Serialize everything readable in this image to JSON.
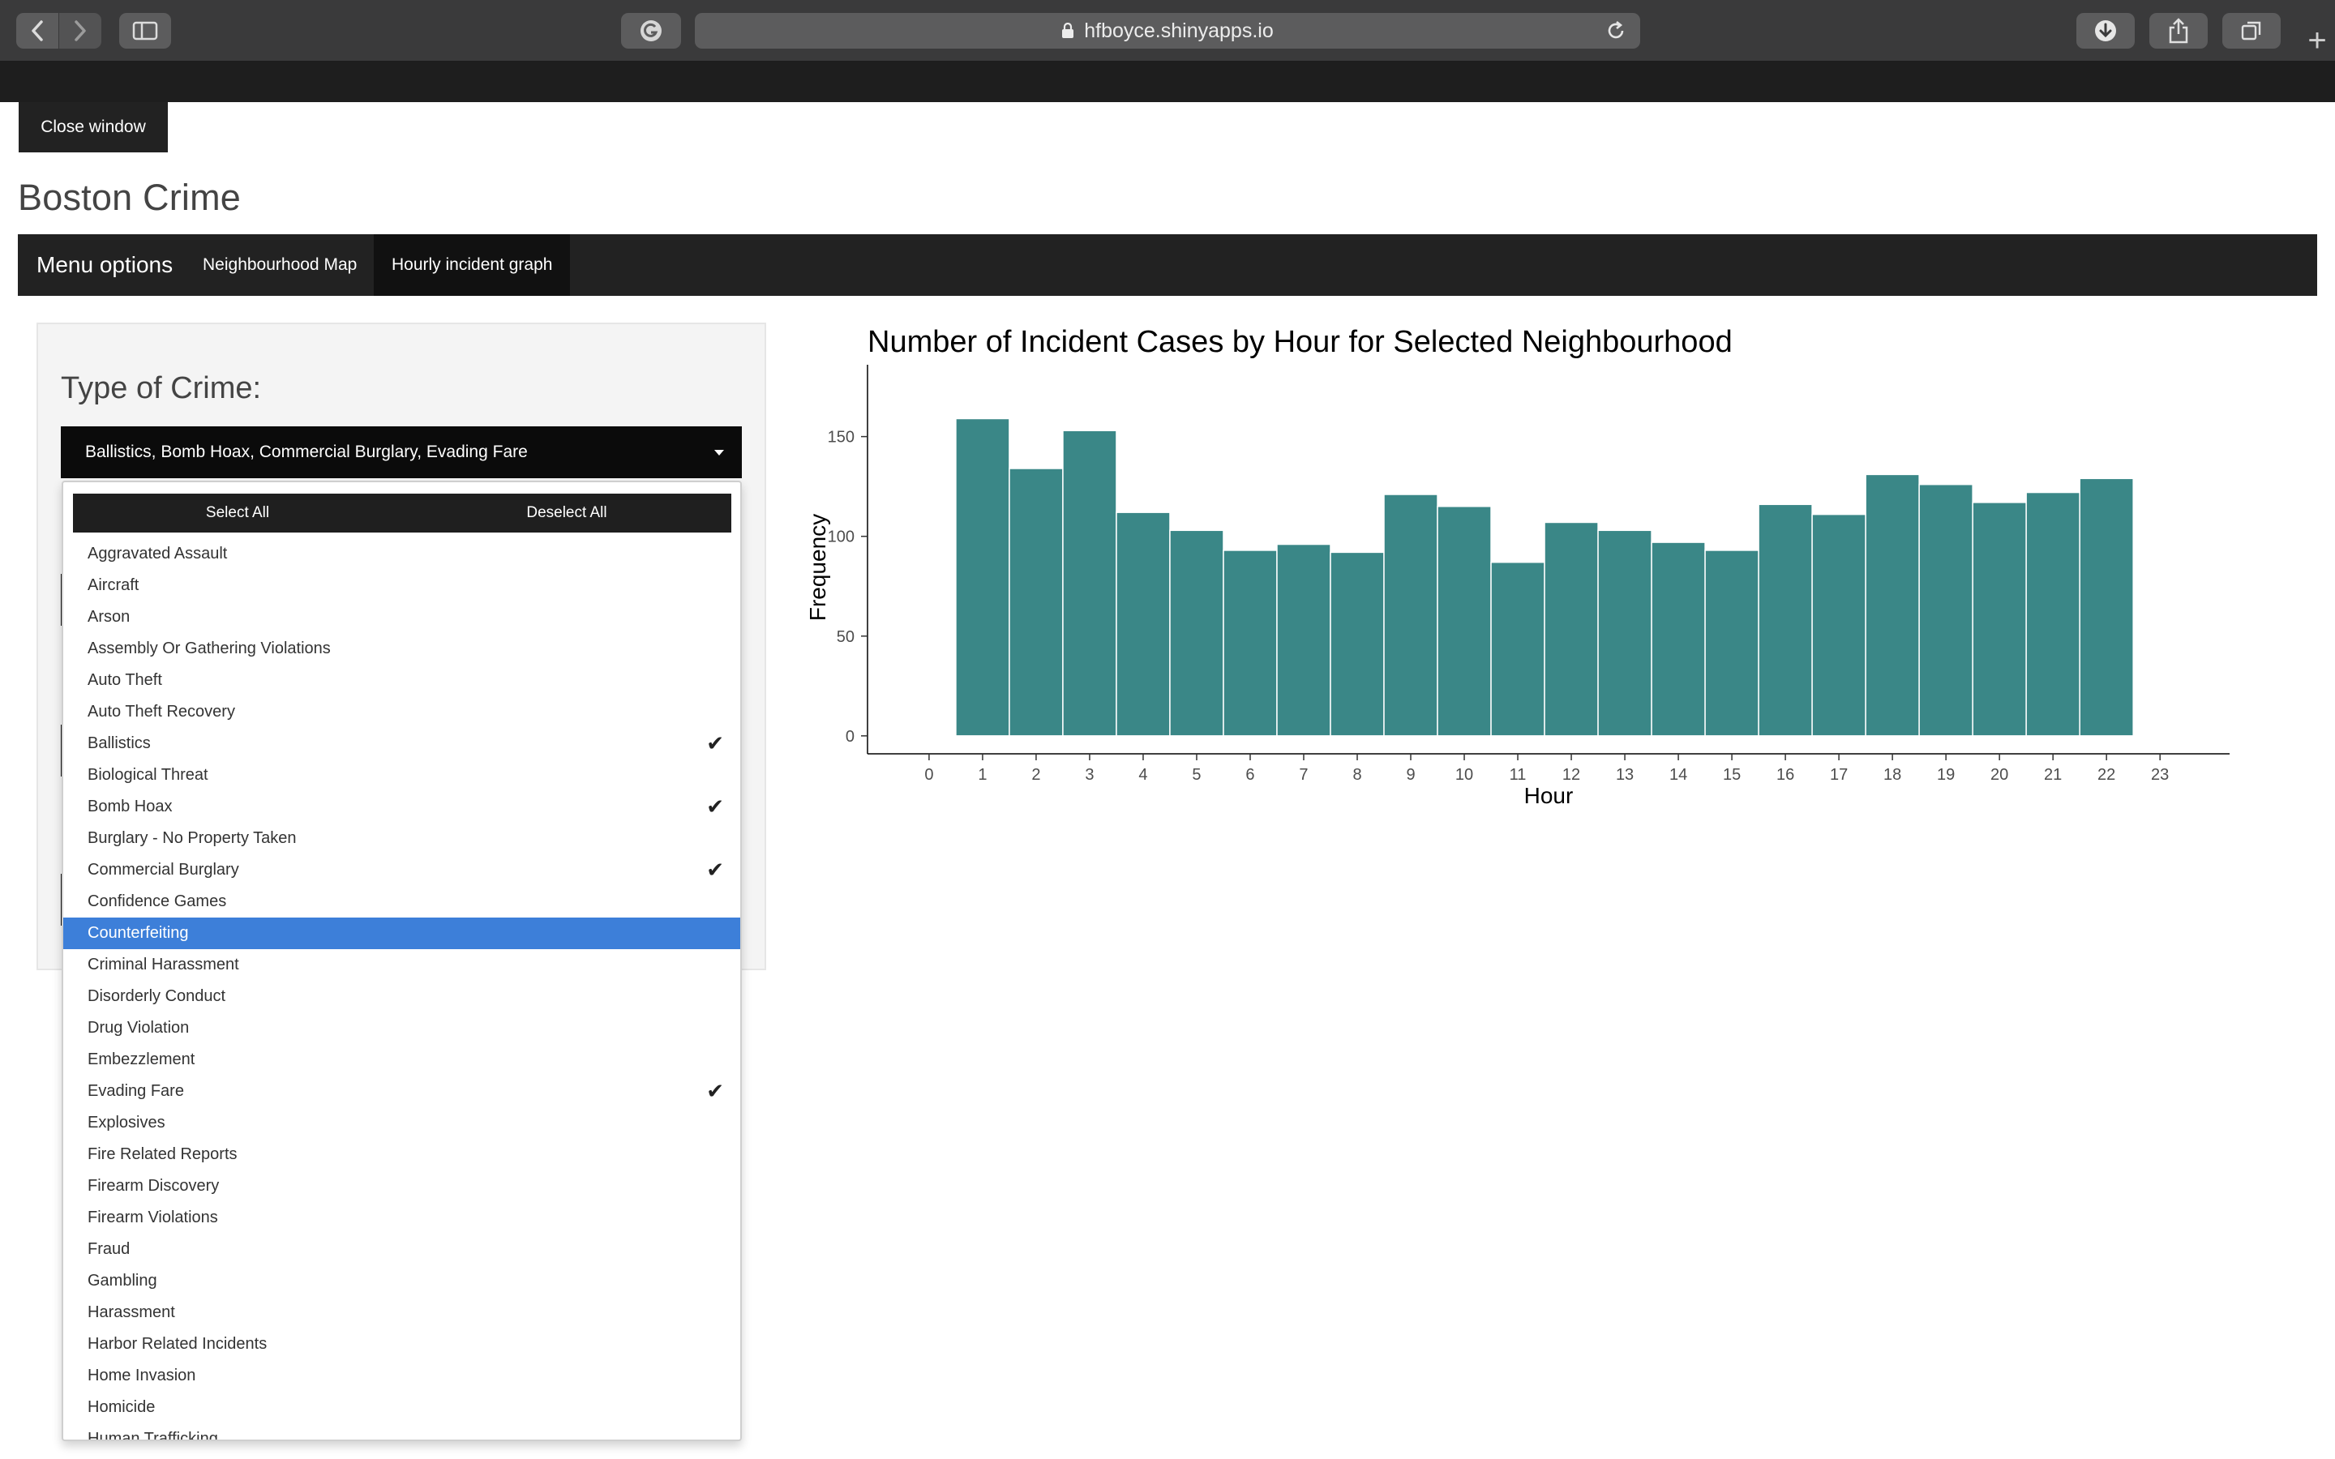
{
  "browser": {
    "url": "hfboyce.shinyapps.io",
    "new_tab_symbol": "+"
  },
  "page": {
    "close_window_label": "Close window",
    "title": "Boston Crime"
  },
  "navbar": {
    "brand": "Menu options",
    "tabs": [
      {
        "label": "Neighbourhood Map",
        "active": false
      },
      {
        "label": "Hourly incident graph",
        "active": true
      }
    ]
  },
  "sidebar": {
    "crime_type_label": "Type of Crime:",
    "selected_text": "Ballistics, Bomb Hoax, Commercial Burglary, Evading Fare",
    "select_all_label": "Select All",
    "deselect_all_label": "Deselect All",
    "check_symbol": "✔",
    "options": [
      {
        "label": "Aggravated Assault",
        "selected": false,
        "highlighted": false
      },
      {
        "label": "Aircraft",
        "selected": false,
        "highlighted": false
      },
      {
        "label": "Arson",
        "selected": false,
        "highlighted": false
      },
      {
        "label": "Assembly Or Gathering Violations",
        "selected": false,
        "highlighted": false
      },
      {
        "label": "Auto Theft",
        "selected": false,
        "highlighted": false
      },
      {
        "label": "Auto Theft Recovery",
        "selected": false,
        "highlighted": false
      },
      {
        "label": "Ballistics",
        "selected": true,
        "highlighted": false
      },
      {
        "label": "Biological Threat",
        "selected": false,
        "highlighted": false
      },
      {
        "label": "Bomb Hoax",
        "selected": true,
        "highlighted": false
      },
      {
        "label": "Burglary - No Property Taken",
        "selected": false,
        "highlighted": false
      },
      {
        "label": "Commercial Burglary",
        "selected": true,
        "highlighted": false
      },
      {
        "label": "Confidence Games",
        "selected": false,
        "highlighted": false
      },
      {
        "label": "Counterfeiting",
        "selected": false,
        "highlighted": true
      },
      {
        "label": "Criminal Harassment",
        "selected": false,
        "highlighted": false
      },
      {
        "label": "Disorderly Conduct",
        "selected": false,
        "highlighted": false
      },
      {
        "label": "Drug Violation",
        "selected": false,
        "highlighted": false
      },
      {
        "label": "Embezzlement",
        "selected": false,
        "highlighted": false
      },
      {
        "label": "Evading Fare",
        "selected": true,
        "highlighted": false
      },
      {
        "label": "Explosives",
        "selected": false,
        "highlighted": false
      },
      {
        "label": "Fire Related Reports",
        "selected": false,
        "highlighted": false
      },
      {
        "label": "Firearm Discovery",
        "selected": false,
        "highlighted": false
      },
      {
        "label": "Firearm Violations",
        "selected": false,
        "highlighted": false
      },
      {
        "label": "Fraud",
        "selected": false,
        "highlighted": false
      },
      {
        "label": "Gambling",
        "selected": false,
        "highlighted": false
      },
      {
        "label": "Harassment",
        "selected": false,
        "highlighted": false
      },
      {
        "label": "Harbor Related Incidents",
        "selected": false,
        "highlighted": false
      },
      {
        "label": "Home Invasion",
        "selected": false,
        "highlighted": false
      },
      {
        "label": "Homicide",
        "selected": false,
        "highlighted": false
      },
      {
        "label": "Human Trafficking",
        "selected": false,
        "highlighted": false
      }
    ]
  },
  "colors": {
    "bar_fill": "#3a8787",
    "bar_stroke": "#ffffff",
    "highlight": "#3d7fd9"
  },
  "chart_data": {
    "type": "bar",
    "title": "Number of Incident Cases by Hour for Selected Neighbourhood",
    "xlabel": "Hour",
    "ylabel": "Frequency",
    "x_ticks": [
      0,
      1,
      2,
      3,
      4,
      5,
      6,
      7,
      8,
      9,
      10,
      11,
      12,
      13,
      14,
      15,
      16,
      17,
      18,
      19,
      20,
      21,
      22,
      23
    ],
    "y_ticks": [
      0,
      50,
      100,
      150
    ],
    "xlim": [
      -1.15,
      24.3
    ],
    "ylim": [
      -9,
      186
    ],
    "categories": [
      1,
      2,
      3,
      4,
      5,
      6,
      7,
      8,
      9,
      10,
      11,
      12,
      13,
      14,
      15,
      16,
      17,
      18,
      19,
      20,
      21,
      22
    ],
    "values": [
      159,
      134,
      153,
      112,
      103,
      93,
      96,
      92,
      121,
      115,
      87,
      107,
      103,
      97,
      93,
      116,
      111,
      131,
      126,
      117,
      122,
      129
    ]
  }
}
